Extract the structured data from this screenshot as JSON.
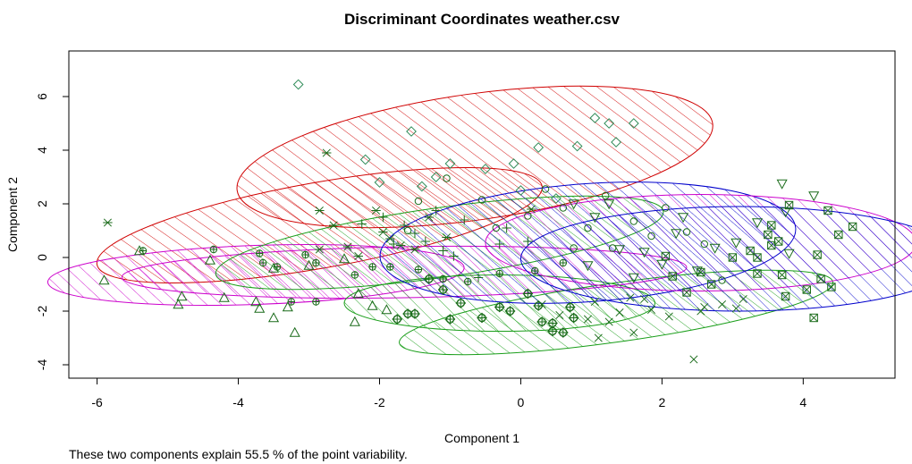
{
  "chart_data": {
    "type": "scatter",
    "title": "Discriminant Coordinates weather.csv",
    "xlabel": "Component 1",
    "ylabel": "Component 2",
    "caption": "These two components explain 55.5 % of the point variability.",
    "xlim": [
      -6.4,
      5.3
    ],
    "ylim": [
      -4.5,
      7.7
    ],
    "x_ticks": [
      -6,
      -4,
      -2,
      0,
      2,
      4
    ],
    "y_ticks": [
      -4,
      -2,
      0,
      2,
      4,
      6
    ],
    "grid": false,
    "legend": "none",
    "clusters": [
      {
        "marker": "diamond",
        "marker_color": "#2e8b57",
        "ellipse_color": "#d00000",
        "ellipse": {
          "cx": -0.65,
          "cy": 3.75,
          "rx": 3.4,
          "ry": 2.35,
          "angle": -8
        },
        "points": [
          [
            -3.15,
            6.45
          ],
          [
            -2.2,
            3.65
          ],
          [
            -1.55,
            4.7
          ],
          [
            -1.4,
            2.65
          ],
          [
            -1.0,
            3.5
          ],
          [
            -0.5,
            3.3
          ],
          [
            -0.1,
            3.5
          ],
          [
            0.25,
            4.1
          ],
          [
            0.8,
            4.15
          ],
          [
            1.05,
            5.2
          ],
          [
            1.25,
            5.0
          ],
          [
            1.35,
            4.3
          ],
          [
            1.6,
            5.0
          ],
          [
            -2.0,
            2.8
          ],
          [
            -1.2,
            3.0
          ],
          [
            0.5,
            2.2
          ],
          [
            0.0,
            2.5
          ]
        ]
      },
      {
        "marker": "asterisk",
        "marker_color": "#1a6b1a",
        "ellipse_color": "#d00000",
        "ellipse": {
          "cx": -2.85,
          "cy": 1.2,
          "rx": 3.2,
          "ry": 1.6,
          "angle": -10
        },
        "points": [
          [
            -5.85,
            1.3
          ],
          [
            -2.75,
            3.9
          ],
          [
            -2.85,
            1.75
          ],
          [
            -2.65,
            1.2
          ],
          [
            -2.05,
            1.75
          ],
          [
            -2.45,
            0.4
          ],
          [
            -1.95,
            0.95
          ],
          [
            -1.7,
            0.45
          ],
          [
            -1.5,
            0.3
          ],
          [
            -1.3,
            1.5
          ],
          [
            -1.05,
            0.75
          ],
          [
            0.15,
            1.8
          ],
          [
            -2.85,
            0.3
          ],
          [
            -2.3,
            0.05
          ],
          [
            -1.85,
            0.7
          ]
        ]
      },
      {
        "marker": "triangle",
        "marker_color": "#1a6b1a",
        "ellipse_color": "#cc00cc",
        "ellipse": {
          "cx": -3.75,
          "cy": -0.65,
          "rx": 2.95,
          "ry": 1.1,
          "angle": -2
        },
        "points": [
          [
            -5.9,
            -0.85
          ],
          [
            -5.4,
            0.25
          ],
          [
            -4.85,
            -1.75
          ],
          [
            -4.8,
            -1.45
          ],
          [
            -4.4,
            -0.1
          ],
          [
            -4.2,
            -1.5
          ],
          [
            -3.75,
            -1.65
          ],
          [
            -3.7,
            -1.9
          ],
          [
            -3.5,
            -2.25
          ],
          [
            -3.3,
            -1.85
          ],
          [
            -3.0,
            -0.3
          ],
          [
            -3.2,
            -2.8
          ],
          [
            -2.35,
            -2.4
          ],
          [
            -2.3,
            -1.35
          ],
          [
            -2.1,
            -1.8
          ],
          [
            -1.9,
            -1.95
          ],
          [
            -2.5,
            -0.05
          ],
          [
            -3.5,
            -0.4
          ]
        ]
      },
      {
        "marker": "circle-plus",
        "marker_color": "#1a6b1a",
        "ellipse_color": "#cc00cc",
        "ellipse": {
          "cx": -1.65,
          "cy": -0.55,
          "rx": 4.0,
          "ry": 0.95,
          "angle": -1
        },
        "points": [
          [
            -5.35,
            0.25
          ],
          [
            -4.35,
            0.3
          ],
          [
            -3.7,
            0.15
          ],
          [
            -3.65,
            -0.2
          ],
          [
            -3.45,
            -0.35
          ],
          [
            -3.25,
            -1.65
          ],
          [
            -2.9,
            -1.65
          ],
          [
            -2.9,
            -0.2
          ],
          [
            -2.35,
            -0.65
          ],
          [
            -2.1,
            -0.35
          ],
          [
            -1.85,
            -0.35
          ],
          [
            -1.45,
            -0.45
          ],
          [
            -1.1,
            -0.8
          ],
          [
            -0.75,
            -0.9
          ],
          [
            -0.3,
            -0.6
          ],
          [
            0.2,
            -0.5
          ],
          [
            0.6,
            -0.2
          ],
          [
            -3.05,
            0.1
          ]
        ]
      },
      {
        "marker": "plus",
        "marker_color": "#1a6b1a",
        "ellipse_color": "#1a9e1a",
        "ellipse": {
          "cx": -1.15,
          "cy": 0.55,
          "rx": 3.2,
          "ry": 1.3,
          "angle": -8
        },
        "points": [
          [
            -2.25,
            1.25
          ],
          [
            -1.95,
            1.5
          ],
          [
            -1.8,
            0.5
          ],
          [
            -1.65,
            1.2
          ],
          [
            -1.35,
            0.6
          ],
          [
            -1.2,
            1.75
          ],
          [
            -1.1,
            0.25
          ],
          [
            -0.95,
            0.05
          ],
          [
            -0.6,
            -0.75
          ],
          [
            -0.3,
            0.5
          ],
          [
            0.1,
            0.6
          ],
          [
            -0.8,
            1.4
          ],
          [
            -1.5,
            0.9
          ],
          [
            -0.2,
            1.1
          ]
        ]
      },
      {
        "marker": "circle-plus-diamond",
        "marker_color": "#1a6b1a",
        "ellipse_color": "#1a9e1a",
        "ellipse": {
          "cx": -0.3,
          "cy": -1.7,
          "rx": 2.2,
          "ry": 1.05,
          "angle": 0
        },
        "points": [
          [
            -1.75,
            -2.3
          ],
          [
            -1.6,
            -2.1
          ],
          [
            -1.5,
            -2.1
          ],
          [
            -1.1,
            -1.2
          ],
          [
            -1.0,
            -2.3
          ],
          [
            -0.85,
            -1.7
          ],
          [
            -0.55,
            -2.25
          ],
          [
            -0.3,
            -1.85
          ],
          [
            -0.15,
            -2.0
          ],
          [
            0.25,
            -1.8
          ],
          [
            0.3,
            -2.4
          ],
          [
            0.45,
            -2.75
          ],
          [
            0.45,
            -2.45
          ],
          [
            0.6,
            -2.8
          ],
          [
            0.7,
            -1.85
          ],
          [
            0.75,
            -2.25
          ],
          [
            -1.3,
            -0.8
          ],
          [
            0.1,
            -1.35
          ]
        ]
      },
      {
        "marker": "x",
        "marker_color": "#1a6b1a",
        "ellipse_color": "#1a9e1a",
        "ellipse": {
          "cx": 1.35,
          "cy": -2.05,
          "rx": 3.1,
          "ry": 1.1,
          "angle": -8
        },
        "points": [
          [
            0.3,
            -1.75
          ],
          [
            0.55,
            -2.15
          ],
          [
            0.95,
            -2.3
          ],
          [
            1.05,
            -1.65
          ],
          [
            1.25,
            -2.4
          ],
          [
            1.4,
            -2.05
          ],
          [
            1.55,
            -1.5
          ],
          [
            1.75,
            -1.55
          ],
          [
            1.85,
            -1.95
          ],
          [
            2.1,
            -2.2
          ],
          [
            2.45,
            -3.8
          ],
          [
            2.55,
            -2.0
          ],
          [
            2.6,
            -1.85
          ],
          [
            2.85,
            -1.75
          ],
          [
            3.05,
            -1.9
          ],
          [
            3.15,
            -1.55
          ],
          [
            1.1,
            -3.0
          ],
          [
            1.6,
            -2.8
          ]
        ]
      },
      {
        "marker": "circle",
        "marker_color": "#1a6b1a",
        "ellipse_color": "#0000cc",
        "ellipse": {
          "cx": 0.95,
          "cy": 0.55,
          "rx": 2.95,
          "ry": 2.2,
          "angle": -4
        },
        "points": [
          [
            -1.6,
            1.0
          ],
          [
            -1.45,
            2.1
          ],
          [
            -1.05,
            2.95
          ],
          [
            -0.55,
            2.15
          ],
          [
            -0.35,
            1.1
          ],
          [
            0.1,
            1.55
          ],
          [
            0.35,
            2.55
          ],
          [
            0.6,
            1.85
          ],
          [
            0.95,
            1.1
          ],
          [
            1.3,
            0.35
          ],
          [
            1.6,
            1.35
          ],
          [
            1.85,
            0.8
          ],
          [
            2.05,
            1.85
          ],
          [
            2.35,
            0.95
          ],
          [
            2.6,
            0.5
          ],
          [
            2.85,
            -0.85
          ],
          [
            1.2,
            2.3
          ],
          [
            0.75,
            0.35
          ]
        ]
      },
      {
        "marker": "triangle-down",
        "marker_color": "#1a6b1a",
        "ellipse_color": "#cc00cc",
        "ellipse": {
          "cx": 2.55,
          "cy": 0.55,
          "rx": 3.05,
          "ry": 1.8,
          "angle": 0
        },
        "points": [
          [
            0.75,
            2.0
          ],
          [
            1.05,
            1.5
          ],
          [
            1.4,
            0.3
          ],
          [
            1.6,
            -0.75
          ],
          [
            1.75,
            0.2
          ],
          [
            2.0,
            -0.25
          ],
          [
            2.3,
            1.5
          ],
          [
            2.5,
            -0.5
          ],
          [
            2.75,
            0.35
          ],
          [
            3.05,
            0.55
          ],
          [
            3.7,
            2.75
          ],
          [
            3.75,
            1.7
          ],
          [
            3.8,
            0.15
          ],
          [
            4.15,
            2.3
          ],
          [
            1.25,
            2.0
          ],
          [
            2.2,
            0.9
          ],
          [
            3.35,
            1.3
          ],
          [
            0.95,
            -0.3
          ]
        ]
      },
      {
        "marker": "square-x",
        "marker_color": "#1a6b1a",
        "ellipse_color": "#0000cc",
        "ellipse": {
          "cx": 3.1,
          "cy": -0.05,
          "rx": 3.1,
          "ry": 1.95,
          "angle": 0
        },
        "points": [
          [
            2.05,
            0.05
          ],
          [
            2.15,
            -0.7
          ],
          [
            2.55,
            -0.55
          ],
          [
            2.7,
            -1.0
          ],
          [
            3.0,
            0.0
          ],
          [
            3.25,
            0.25
          ],
          [
            3.35,
            0.0
          ],
          [
            3.5,
            0.85
          ],
          [
            3.55,
            1.2
          ],
          [
            3.55,
            0.45
          ],
          [
            3.65,
            0.6
          ],
          [
            3.7,
            -0.65
          ],
          [
            3.75,
            -1.45
          ],
          [
            3.8,
            1.95
          ],
          [
            4.05,
            -1.2
          ],
          [
            4.2,
            0.1
          ],
          [
            4.25,
            -0.8
          ],
          [
            4.35,
            1.75
          ],
          [
            4.4,
            -1.1
          ],
          [
            4.5,
            0.85
          ],
          [
            4.7,
            1.15
          ],
          [
            4.15,
            -2.25
          ],
          [
            3.35,
            -0.6
          ],
          [
            2.35,
            -1.3
          ]
        ]
      }
    ]
  }
}
